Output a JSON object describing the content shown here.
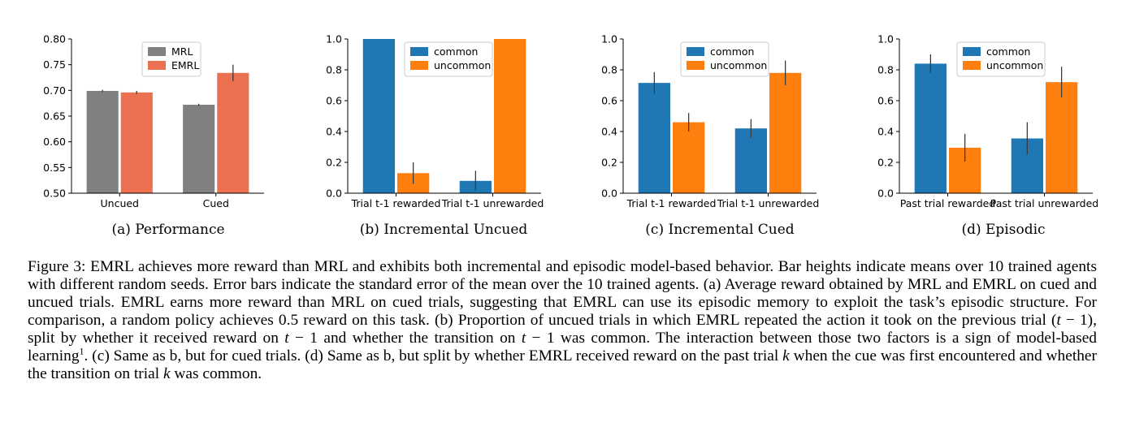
{
  "chart_data": [
    {
      "type": "bar",
      "title": "",
      "categories": [
        "Uncued",
        "Cued"
      ],
      "series": [
        {
          "name": "MRL",
          "values": [
            0.699,
            0.672
          ],
          "errors": [
            0.002,
            0.002
          ],
          "color": "#808080"
        },
        {
          "name": "EMRL",
          "values": [
            0.696,
            0.734
          ],
          "errors": [
            0.003,
            0.016
          ],
          "color": "#ec7150"
        }
      ],
      "ylim": [
        0.5,
        0.8
      ],
      "yticks": [
        "0.50",
        "0.55",
        "0.60",
        "0.65",
        "0.70",
        "0.75",
        "0.80"
      ],
      "xlabel": "",
      "ylabel": "",
      "legend": "top-center",
      "grid": false,
      "caption": "(a) Performance"
    },
    {
      "type": "bar",
      "title": "",
      "categories": [
        "Trial t-1 rewarded",
        "Trial t-1 unrewarded"
      ],
      "series": [
        {
          "name": "common",
          "values": [
            1.0,
            0.08
          ],
          "errors": [
            0.0,
            0.065
          ],
          "color": "#1f77b4"
        },
        {
          "name": "uncommon",
          "values": [
            0.13,
            1.0
          ],
          "errors": [
            0.07,
            0.0
          ],
          "color": "#ff7f0e"
        }
      ],
      "ylim": [
        0.0,
        1.0
      ],
      "yticks": [
        "0.0",
        "0.2",
        "0.4",
        "0.6",
        "0.8",
        "1.0"
      ],
      "xlabel": "",
      "ylabel": "",
      "legend": "top-center",
      "grid": false,
      "caption": "(b) Incremental Uncued"
    },
    {
      "type": "bar",
      "title": "",
      "categories": [
        "Trial t-1 rewarded",
        "Trial t-1 unrewarded"
      ],
      "series": [
        {
          "name": "common",
          "values": [
            0.715,
            0.42
          ],
          "errors": [
            0.07,
            0.06
          ],
          "color": "#1f77b4"
        },
        {
          "name": "uncommon",
          "values": [
            0.46,
            0.78
          ],
          "errors": [
            0.06,
            0.08
          ],
          "color": "#ff7f0e"
        }
      ],
      "ylim": [
        0.0,
        1.0
      ],
      "yticks": [
        "0.0",
        "0.2",
        "0.4",
        "0.6",
        "0.8",
        "1.0"
      ],
      "xlabel": "",
      "ylabel": "",
      "legend": "top-center",
      "grid": false,
      "caption": "(c) Incremental Cued"
    },
    {
      "type": "bar",
      "title": "",
      "categories": [
        "Past trial rewarded",
        "Past trial unrewarded"
      ],
      "series": [
        {
          "name": "common",
          "values": [
            0.84,
            0.355
          ],
          "errors": [
            0.06,
            0.105
          ],
          "color": "#1f77b4"
        },
        {
          "name": "uncommon",
          "values": [
            0.295,
            0.72
          ],
          "errors": [
            0.09,
            0.1
          ],
          "color": "#ff7f0e"
        }
      ],
      "ylim": [
        0.0,
        1.0
      ],
      "yticks": [
        "0.0",
        "0.2",
        "0.4",
        "0.6",
        "0.8",
        "1.0"
      ],
      "xlabel": "",
      "ylabel": "",
      "legend": "top-center",
      "grid": false,
      "caption": "(d) Episodic"
    }
  ],
  "caption": {
    "lead": "Figure 3: EMRL achieves more reward than MRL and exhibits both incremental and episodic model-based behavior. Bar heights indicate means over 10 trained agents with different random seeds. Error bars indicate the standard error of the mean over the 10 trained agents. (a) Average reward obtained by MRL and EMRL on cued and uncued trials. EMRL earns more reward than MRL on cued trials, suggesting that EMRL can use its episodic memory to exploit the task’s episodic structure. For comparison, a random policy achieves 0.5 reward on this task. (b) Proportion of uncued trials in which EMRL repeated the action it took on the previous trial (",
    "t1": "t",
    "mid1": " − 1), split by whether it received reward on ",
    "t2": "t",
    "mid2": " − 1 and whether the transition on ",
    "t3": "t",
    "mid3": " − 1 was common. The interaction between those two factors is a sign of model-based learning",
    "footnote": "1",
    "mid4": ". (c) Same as b, but for cued trials. (d) Same as b, but split by whether EMRL received reward on the past trial ",
    "k1": "k",
    "mid5": " when the cue was first encountered and whether the transition on trial ",
    "k2": "k",
    "tail": " was common."
  }
}
